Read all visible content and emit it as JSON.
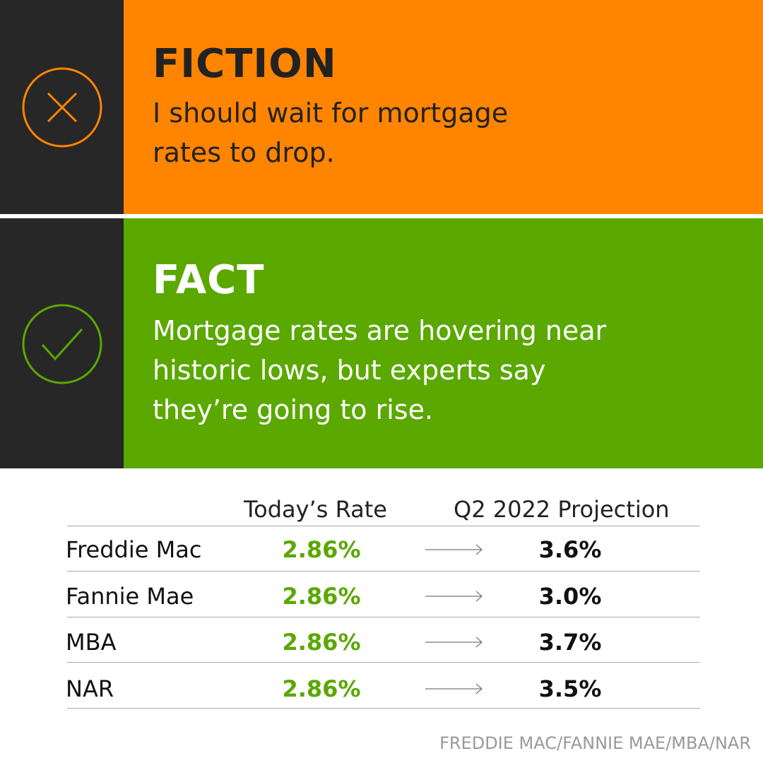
{
  "fiction": {
    "title": "FICTION",
    "text": "I should wait for mortgage rates to drop."
  },
  "fact": {
    "title": "FACT",
    "text": "Mortgage rates are hovering near historic lows, but experts say they’re going to rise."
  },
  "table": {
    "headers": [
      "Today’s Rate",
      "Q2 2022 Projection"
    ],
    "rows": [
      [
        "Freddie Mac",
        "2.86%",
        "3.6%"
      ],
      [
        "Fannie Mae",
        "2.86%",
        "3.0%"
      ],
      [
        "MBA",
        "2.86%",
        "3.7%"
      ],
      [
        "NAR",
        "2.86%",
        "3.5%"
      ]
    ]
  },
  "source": "FREDDIE MAC/FANNIE MAE/MBA/NAR"
}
